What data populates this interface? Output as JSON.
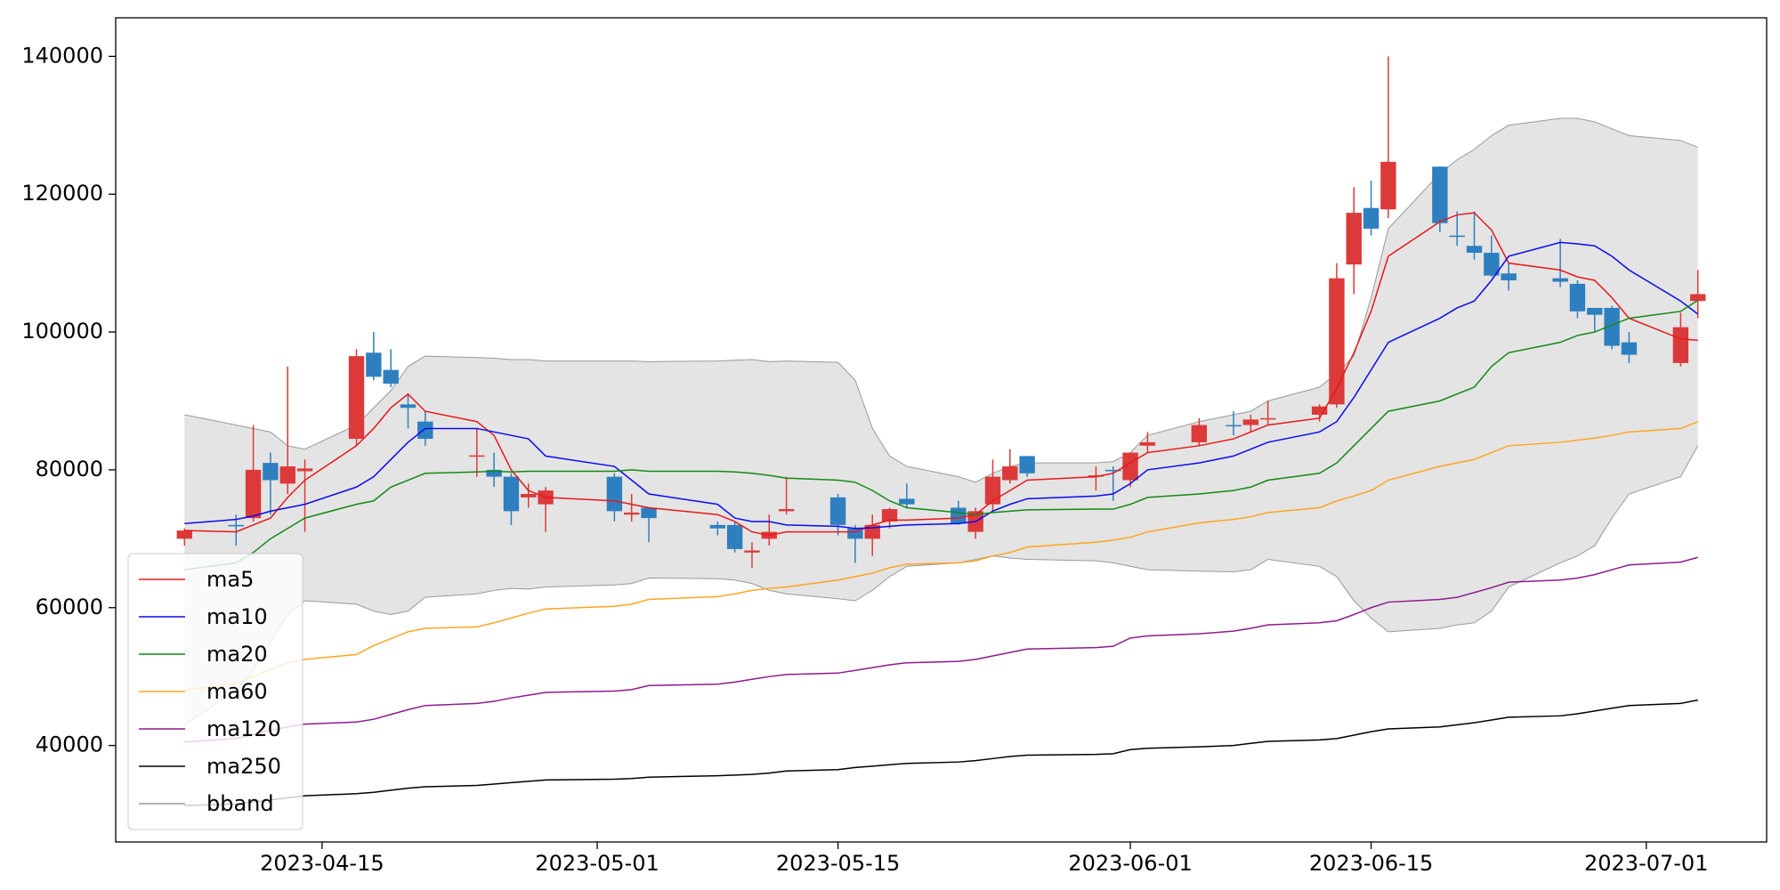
{
  "chart_data": {
    "type": "candlestick",
    "x": [
      "2023-04-07",
      "2023-04-10",
      "2023-04-11",
      "2023-04-12",
      "2023-04-13",
      "2023-04-14",
      "2023-04-17",
      "2023-04-18",
      "2023-04-19",
      "2023-04-20",
      "2023-04-21",
      "2023-04-24",
      "2023-04-25",
      "2023-04-26",
      "2023-04-27",
      "2023-04-28",
      "2023-05-02",
      "2023-05-03",
      "2023-05-04",
      "2023-05-08",
      "2023-05-09",
      "2023-05-10",
      "2023-05-11",
      "2023-05-12",
      "2023-05-15",
      "2023-05-16",
      "2023-05-17",
      "2023-05-18",
      "2023-05-19",
      "2023-05-22",
      "2023-05-23",
      "2023-05-24",
      "2023-05-25",
      "2023-05-26",
      "2023-05-30",
      "2023-05-31",
      "2023-06-01",
      "2023-06-02",
      "2023-06-05",
      "2023-06-07",
      "2023-06-08",
      "2023-06-09",
      "2023-06-12",
      "2023-06-13",
      "2023-06-14",
      "2023-06-15",
      "2023-06-16",
      "2023-06-19",
      "2023-06-20",
      "2023-06-21",
      "2023-06-22",
      "2023-06-23",
      "2023-06-26",
      "2023-06-27",
      "2023-06-28",
      "2023-06-29",
      "2023-06-30",
      "2023-07-03",
      "2023-07-04"
    ],
    "open": [
      70000,
      72000,
      73000,
      81000,
      78000,
      79800,
      84500,
      97000,
      94500,
      89500,
      87000,
      82000,
      80000,
      79000,
      76000,
      75000,
      79000,
      73500,
      74500,
      72000,
      72000,
      68000,
      70000,
      74000,
      76000,
      71500,
      70000,
      72500,
      75800,
      74500,
      71000,
      75000,
      78500,
      82000,
      79000,
      80000,
      78500,
      83500,
      84000,
      86500,
      86500,
      87300,
      88000,
      89500,
      109800,
      118000,
      117800,
      124000,
      114000,
      112500,
      111500,
      108500,
      107800,
      107000,
      103500,
      103500,
      98500,
      95500,
      104500
    ],
    "high": [
      71500,
      73500,
      86500,
      82500,
      95000,
      81500,
      97500,
      100000,
      97500,
      91000,
      88500,
      86000,
      82500,
      79500,
      78000,
      77500,
      79500,
      76500,
      74500,
      72500,
      72500,
      69500,
      73500,
      79000,
      76500,
      72000,
      73500,
      74500,
      78000,
      75500,
      74500,
      81500,
      83000,
      82000,
      80500,
      80500,
      82500,
      85500,
      87500,
      88500,
      88000,
      90000,
      89500,
      110000,
      121000,
      122000,
      140000,
      124000,
      117500,
      117500,
      114000,
      110000,
      113500,
      107500,
      103500,
      103800,
      100000,
      102800,
      109000
    ],
    "low": [
      69000,
      69000,
      72500,
      73500,
      76500,
      71000,
      83500,
      93000,
      92000,
      86000,
      83500,
      79000,
      77500,
      72000,
      74500,
      71000,
      72500,
      72500,
      69500,
      70500,
      68000,
      65800,
      69000,
      73500,
      70500,
      66500,
      67500,
      71500,
      74500,
      72000,
      70000,
      74000,
      78000,
      79000,
      77000,
      75500,
      77500,
      82500,
      83500,
      85000,
      85500,
      86500,
      87000,
      89000,
      105500,
      114000,
      116500,
      114500,
      112500,
      110500,
      108000,
      106000,
      106500,
      102000,
      100000,
      97500,
      95500,
      95000,
      102000
    ],
    "close": [
      71200,
      71800,
      80000,
      78500,
      80500,
      80200,
      96500,
      93500,
      92500,
      89000,
      84500,
      82100,
      79000,
      74000,
      76500,
      77000,
      74000,
      73800,
      73000,
      71500,
      68500,
      68300,
      71000,
      74300,
      72000,
      70000,
      72000,
      74300,
      75000,
      72200,
      74000,
      79000,
      80500,
      79500,
      79200,
      79800,
      82500,
      84000,
      86500,
      86400,
      87300,
      87500,
      89200,
      107800,
      117300,
      115000,
      124700,
      115800,
      113800,
      111500,
      108200,
      107500,
      107300,
      103000,
      102500,
      98000,
      96700,
      100700,
      105500
    ],
    "up_color": "#dc3a3a",
    "down_color": "#2e7fbf",
    "series": [
      {
        "name": "ma5",
        "color": "#e8181b",
        "values": [
          71200,
          71000,
          72000,
          73000,
          76000,
          78500,
          83500,
          86000,
          89000,
          91000,
          88500,
          87000,
          85000,
          80000,
          77000,
          76000,
          75500,
          75000,
          74500,
          73500,
          72500,
          71000,
          70500,
          71000,
          71000,
          71000,
          72000,
          72700,
          72700,
          73000,
          73500,
          75500,
          77000,
          78500,
          79000,
          79500,
          81000,
          82500,
          83500,
          84500,
          85500,
          86500,
          87500,
          91800,
          97000,
          103000,
          111000,
          116000,
          117000,
          117300,
          114800,
          110000,
          109000,
          108000,
          107500,
          105000,
          102000,
          99000,
          98800
        ]
      },
      {
        "name": "ma10",
        "color": "#0a0af0",
        "values": [
          72200,
          72800,
          73300,
          74000,
          74500,
          75000,
          77500,
          79000,
          81500,
          84000,
          86000,
          86000,
          85500,
          85000,
          84500,
          82000,
          80500,
          78500,
          76500,
          75000,
          73000,
          72500,
          72500,
          72000,
          71800,
          71500,
          71600,
          71800,
          72000,
          72200,
          72500,
          74000,
          75000,
          75800,
          76200,
          76500,
          78000,
          80000,
          81000,
          82000,
          83000,
          84000,
          85500,
          87000,
          90500,
          94500,
          98500,
          102000,
          103500,
          104500,
          107500,
          111000,
          113000,
          112800,
          112500,
          111000,
          109000,
          104500,
          102600
        ]
      },
      {
        "name": "ma20",
        "color": "#138a13",
        "values": [
          65500,
          66500,
          68000,
          70000,
          71500,
          73000,
          75000,
          75500,
          77500,
          78500,
          79500,
          79700,
          79800,
          79700,
          79800,
          79800,
          79800,
          80000,
          79800,
          79800,
          79700,
          79500,
          79200,
          78800,
          78500,
          78200,
          77000,
          75500,
          74500,
          73800,
          73500,
          73800,
          74000,
          74200,
          74300,
          74300,
          75000,
          76000,
          76500,
          77000,
          77500,
          78500,
          79500,
          81000,
          83500,
          86000,
          88500,
          90000,
          91000,
          92000,
          95000,
          97000,
          98500,
          99500,
          100000,
          101000,
          102000,
          103000,
          104600
        ]
      },
      {
        "name": "ma60",
        "color": "#ffa51f",
        "values": [
          48000,
          49000,
          50000,
          51000,
          52000,
          52500,
          53200,
          54500,
          55500,
          56500,
          57000,
          57200,
          57800,
          58500,
          59200,
          59800,
          60200,
          60500,
          61200,
          61600,
          62000,
          62500,
          62800,
          63000,
          64000,
          64500,
          65000,
          65800,
          66300,
          66500,
          66800,
          67500,
          68000,
          68800,
          69500,
          69800,
          70200,
          71000,
          72300,
          72800,
          73200,
          73800,
          74500,
          75500,
          76200,
          77000,
          78500,
          80500,
          81000,
          81500,
          82500,
          83500,
          84000,
          84300,
          84600,
          85000,
          85500,
          86000,
          87000
        ]
      },
      {
        "name": "ma120",
        "color": "#8f1a8f",
        "values": [
          40500,
          41000,
          41600,
          42200,
          42700,
          43100,
          43400,
          43800,
          44500,
          45200,
          45800,
          46100,
          46400,
          46900,
          47300,
          47700,
          47900,
          48100,
          48700,
          48900,
          49200,
          49600,
          50000,
          50300,
          50500,
          50900,
          51300,
          51700,
          52000,
          52200,
          52500,
          53000,
          53500,
          54000,
          54200,
          54400,
          55600,
          55900,
          56200,
          56600,
          57000,
          57500,
          57800,
          58100,
          59000,
          60000,
          60800,
          61200,
          61500,
          62200,
          62900,
          63700,
          64000,
          64300,
          64800,
          65500,
          66200,
          66600,
          67300
        ]
      },
      {
        "name": "ma250",
        "color": "#000000",
        "values": [
          31300,
          31500,
          31800,
          32100,
          32400,
          32700,
          33000,
          33200,
          33500,
          33800,
          34000,
          34200,
          34400,
          34600,
          34800,
          35000,
          35100,
          35200,
          35400,
          35600,
          35700,
          35800,
          36000,
          36300,
          36500,
          36800,
          37000,
          37200,
          37400,
          37600,
          37800,
          38100,
          38400,
          38600,
          38700,
          38800,
          39400,
          39600,
          39800,
          40000,
          40300,
          40600,
          40800,
          41000,
          41500,
          42000,
          42400,
          42700,
          43000,
          43300,
          43700,
          44100,
          44300,
          44600,
          45000,
          45400,
          45800,
          46100,
          46600
        ]
      }
    ],
    "bband": {
      "name": "bband",
      "color": "#999999",
      "fill": "#e4e4e4",
      "upper": [
        88000,
        86500,
        86000,
        85500,
        83500,
        83000,
        86500,
        89000,
        91500,
        95000,
        96500,
        96300,
        96200,
        96000,
        96000,
        95800,
        95800,
        95800,
        95700,
        95800,
        95900,
        96000,
        95700,
        95800,
        95600,
        93000,
        86000,
        82000,
        80500,
        79000,
        78200,
        79500,
        80500,
        81000,
        81000,
        81200,
        82500,
        85000,
        87000,
        88000,
        88500,
        90000,
        92000,
        94000,
        96500,
        105000,
        115000,
        123000,
        125000,
        126500,
        128500,
        130000,
        131000,
        131000,
        130500,
        129500,
        128500,
        127800,
        126800
      ],
      "lower": [
        43000,
        48000,
        51000,
        55000,
        59000,
        61000,
        60500,
        59500,
        59000,
        59500,
        61500,
        62000,
        62500,
        62800,
        62700,
        63000,
        63300,
        63500,
        64300,
        64200,
        64000,
        63500,
        62500,
        62000,
        61300,
        61000,
        62500,
        64500,
        66000,
        66500,
        67000,
        67500,
        67200,
        67000,
        66800,
        66500,
        66000,
        65500,
        65300,
        65200,
        65500,
        67000,
        66000,
        64500,
        61000,
        58500,
        56500,
        57000,
        57500,
        57800,
        59500,
        63000,
        66500,
        67500,
        69000,
        73000,
        76500,
        79000,
        83500
      ]
    },
    "xlim": [
      "2023-04-03",
      "2023-07-08"
    ],
    "xticks": [
      "2023-04-15",
      "2023-05-01",
      "2023-05-15",
      "2023-06-01",
      "2023-06-15",
      "2023-07-01"
    ],
    "ylim": [
      26000,
      145600
    ],
    "yticks": [
      40000,
      60000,
      80000,
      100000,
      120000,
      140000
    ],
    "grid": false,
    "legend": "lower left"
  }
}
